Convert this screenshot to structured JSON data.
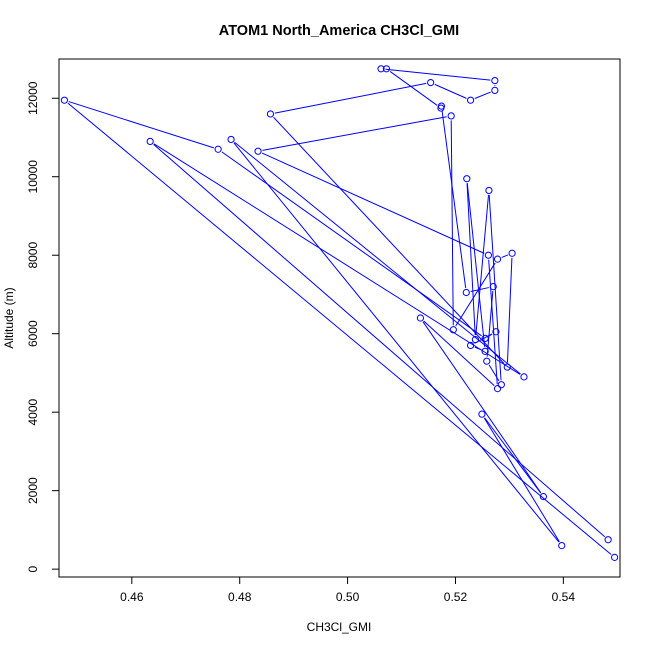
{
  "chart_data": {
    "type": "line",
    "title": "ATOM1 North_America CH3Cl_GMI",
    "xlabel": "CH3Cl_GMI",
    "ylabel": "Altitude (m)",
    "xlim": [
      0.4465,
      0.5505
    ],
    "ylim": [
      -200,
      13000
    ],
    "xticks": [
      0.46,
      0.48,
      0.5,
      0.52,
      0.54
    ],
    "xtick_labels": [
      "0.46",
      "0.48",
      "0.50",
      "0.52",
      "0.54"
    ],
    "yticks": [
      0,
      2000,
      4000,
      6000,
      8000,
      10000,
      12000
    ],
    "ytick_labels": [
      "0",
      "2000",
      "4000",
      "6000",
      "8000",
      "10000",
      "12000"
    ],
    "grid": false,
    "series": [
      {
        "color": "#0000ff",
        "marker": "open-circle",
        "x": [
          0.5495,
          0.4475,
          0.476,
          0.5255,
          0.5275,
          0.5228,
          0.5255,
          0.5221,
          0.5237,
          0.5262,
          0.5285,
          0.5258,
          0.527,
          0.522,
          0.5174,
          0.5173,
          0.5072,
          0.5062,
          0.5273,
          0.5273,
          0.5228,
          0.5154,
          0.4857,
          0.5296,
          0.5305,
          0.5278,
          0.5196,
          0.5192,
          0.4834,
          0.5261,
          0.5278,
          0.5135,
          0.5363,
          0.5249,
          0.5397,
          0.4784,
          0.5327,
          0.4634,
          0.5483
        ],
        "y": [
          300,
          11950,
          10700,
          5880,
          6050,
          5700,
          5550,
          9950,
          5850,
          9650,
          4700,
          5300,
          7200,
          7050,
          11800,
          11750,
          12750,
          12750,
          12450,
          12200,
          11950,
          12400,
          11600,
          5150,
          8050,
          7900,
          6100,
          11550,
          10650,
          8000,
          4600,
          6400,
          1850,
          3950,
          600,
          10950,
          4900,
          10900,
          750
        ]
      }
    ]
  }
}
